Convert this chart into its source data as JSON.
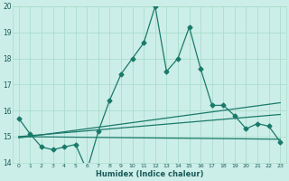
{
  "xlabel": "Humidex (Indice chaleur)",
  "bg_color": "#cceee8",
  "grid_color": "#aaddcc",
  "line_color": "#1a7a6a",
  "xlim": [
    -0.5,
    23.5
  ],
  "ylim": [
    14,
    20
  ],
  "xticks": [
    0,
    1,
    2,
    3,
    4,
    5,
    6,
    7,
    8,
    9,
    10,
    11,
    12,
    13,
    14,
    15,
    16,
    17,
    18,
    19,
    20,
    21,
    22,
    23
  ],
  "yticks": [
    14,
    15,
    16,
    17,
    18,
    19,
    20
  ],
  "series1_x": [
    0,
    1,
    2,
    3,
    4,
    5,
    6,
    7,
    8,
    9,
    10,
    11,
    12,
    13,
    14,
    15,
    16,
    17,
    18,
    19,
    20,
    21,
    22,
    23
  ],
  "series1_y": [
    15.7,
    15.1,
    14.6,
    14.5,
    14.6,
    14.7,
    13.7,
    15.2,
    16.4,
    17.4,
    18.0,
    18.6,
    20.0,
    17.5,
    18.0,
    19.2,
    17.6,
    16.2,
    16.2,
    15.8,
    15.3,
    15.5,
    15.4,
    14.8
  ],
  "series2_x": [
    0,
    23
  ],
  "series2_y": [
    15.0,
    15.85
  ],
  "series3_x": [
    0,
    23
  ],
  "series3_y": [
    14.95,
    16.3
  ],
  "series4_x": [
    0,
    23
  ],
  "series4_y": [
    15.0,
    14.9
  ],
  "marker": "D",
  "marker_size": 2.5,
  "line_width": 0.9
}
